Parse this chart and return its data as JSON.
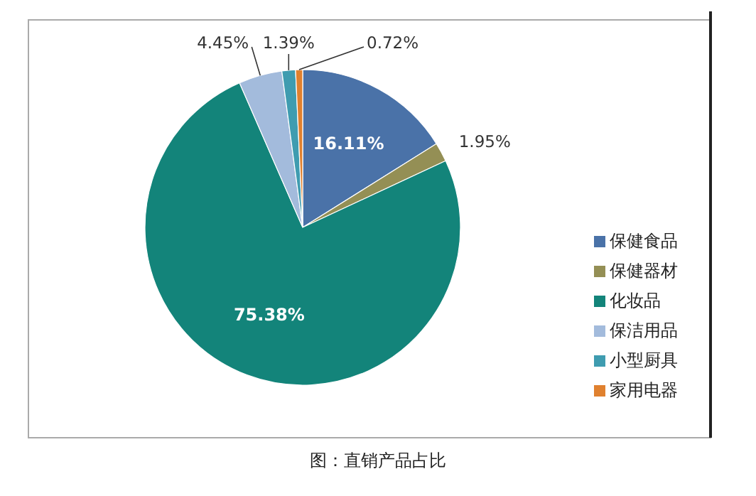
{
  "chart_data": {
    "type": "pie",
    "categories": [
      "保健食品",
      "保健器材",
      "化妆品",
      "保洁用品",
      "小型厨具",
      "家用电器"
    ],
    "values": [
      16.11,
      1.95,
      75.38,
      4.45,
      1.39,
      0.72
    ],
    "colors": [
      "#4a72a8",
      "#948f55",
      "#13847a",
      "#a3bbdc",
      "#3f9cb0",
      "#e0812f"
    ],
    "value_labels": [
      "16.11%",
      "1.95%",
      "75.38%",
      "4.45%",
      "1.39%",
      "0.72%"
    ],
    "legend": "right",
    "annotations": [
      "图：直销产品占比"
    ]
  }
}
